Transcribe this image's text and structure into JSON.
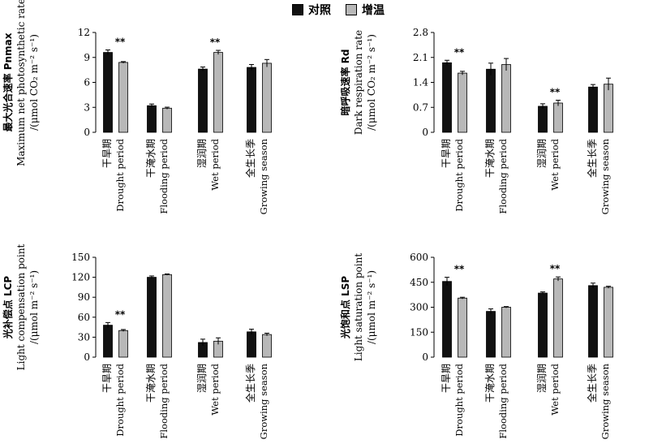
{
  "legend": {
    "control": "对照",
    "warming": "增温"
  },
  "colors": {
    "control": "#111111",
    "warming": "#b8b8b8"
  },
  "chart_data": [
    {
      "type": "bar",
      "ylabel_cn": "最大光合速率 Pnmax",
      "ylabel_en": "Maximum net photosynthetic rate",
      "ylabel_unit": "/(μmol CO₂ m⁻² s⁻¹)",
      "ylim": [
        0,
        12
      ],
      "yticks": [
        "0",
        "3",
        "6",
        "9",
        "12"
      ],
      "categories_cn": [
        "干旱期",
        "干淹水期",
        "湿润期",
        "全生长季"
      ],
      "categories_en": [
        "Drought period",
        "Flooding period",
        "Wet period",
        "Growing season"
      ],
      "series": [
        {
          "name": "对照",
          "values": [
            9.6,
            3.2,
            7.6,
            7.8
          ],
          "errors": [
            0.3,
            0.2,
            0.25,
            0.35
          ]
        },
        {
          "name": "增温",
          "values": [
            8.4,
            2.9,
            9.6,
            8.3
          ],
          "errors": [
            0.1,
            0.12,
            0.25,
            0.45
          ]
        }
      ],
      "significance": [
        "**",
        "",
        "**",
        ""
      ]
    },
    {
      "type": "bar",
      "ylabel_cn": "暗呼吸速率 Rd",
      "ylabel_en": "Dark respiration rate",
      "ylabel_unit": "/(μmol CO₂ m⁻² s⁻¹)",
      "ylim": [
        0,
        2.8
      ],
      "yticks": [
        "0",
        "0.7",
        "1.4",
        "2.1",
        "2.8"
      ],
      "categories_cn": [
        "干旱期",
        "干淹水期",
        "湿润期",
        "全生长季"
      ],
      "categories_en": [
        "Drought period",
        "Flooding period",
        "Wet period",
        "Growing season"
      ],
      "series": [
        {
          "name": "对照",
          "values": [
            1.95,
            1.77,
            0.73,
            1.27
          ],
          "errors": [
            0.07,
            0.17,
            0.07,
            0.07
          ]
        },
        {
          "name": "增温",
          "values": [
            1.66,
            1.9,
            0.82,
            1.35
          ],
          "errors": [
            0.05,
            0.17,
            0.08,
            0.17
          ]
        }
      ],
      "significance": [
        "**",
        "",
        "**",
        ""
      ]
    },
    {
      "type": "bar",
      "ylabel_cn": "光补偿点 LCP",
      "ylabel_en": "Light compensation point",
      "ylabel_unit": "/(μmol m⁻² s⁻¹)",
      "ylim": [
        0,
        150
      ],
      "yticks": [
        "0",
        "30",
        "60",
        "90",
        "120",
        "150"
      ],
      "categories_cn": [
        "干旱期",
        "干淹水期",
        "湿润期",
        "全生长季"
      ],
      "categories_en": [
        "Drought period",
        "Flooding period",
        "Wet period",
        "Growing season"
      ],
      "series": [
        {
          "name": "对照",
          "values": [
            48,
            120,
            22,
            38
          ],
          "errors": [
            4,
            2,
            5,
            4
          ]
        },
        {
          "name": "增温",
          "values": [
            40,
            124,
            24,
            34
          ],
          "errors": [
            1.5,
            1,
            5,
            2
          ]
        }
      ],
      "significance": [
        "**",
        "",
        "",
        ""
      ]
    },
    {
      "type": "bar",
      "ylabel_cn": "光饱和点 LSP",
      "ylabel_en": "Light saturation point",
      "ylabel_unit": "/(μmol m⁻² s⁻¹)",
      "ylim": [
        0,
        600
      ],
      "yticks": [
        "0",
        "150",
        "300",
        "450",
        "600"
      ],
      "categories_cn": [
        "干旱期",
        "干淹水期",
        "湿润期",
        "全生长季"
      ],
      "categories_en": [
        "Drought period",
        "Flooding period",
        "Wet period",
        "Growing season"
      ],
      "series": [
        {
          "name": "对照",
          "values": [
            455,
            275,
            385,
            430
          ],
          "errors": [
            25,
            15,
            7,
            15
          ]
        },
        {
          "name": "增温",
          "values": [
            355,
            300,
            470,
            420
          ],
          "errors": [
            5,
            4,
            12,
            6
          ]
        }
      ],
      "significance": [
        "**",
        "",
        "**",
        ""
      ]
    }
  ]
}
